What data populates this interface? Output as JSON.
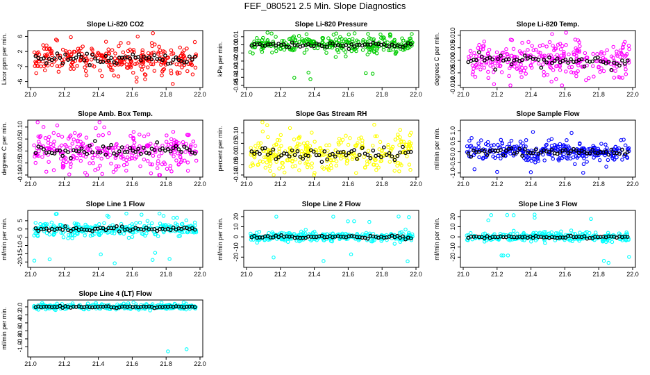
{
  "page_title": "FEF_080521  2.5 Min. Slope Diagnostics",
  "colors": {
    "mean": "#000000",
    "red": "#ff0000",
    "green": "#00cc00",
    "magenta": "#ff00ff",
    "yellow": "#ffff00",
    "blue": "#0000ff",
    "cyan": "#00ffff"
  },
  "chart_data": [
    {
      "type": "scatter",
      "title": "Slope Li-820 CO2",
      "ylabel": "Licor ppm per min.",
      "color": "red",
      "xlim": [
        21.0,
        22.0
      ],
      "ylim": [
        -7,
        7
      ],
      "xticks": [
        "21.0",
        "21.2",
        "21.4",
        "21.6",
        "21.8",
        "22.0"
      ],
      "yticks": [
        "-6",
        "-2",
        "2",
        "6"
      ],
      "spread": 1.8
    },
    {
      "type": "scatter",
      "title": "Slope Li-820 Pressure",
      "ylabel": "kPa per min.",
      "color": "green",
      "xlim": [
        21.0,
        22.0
      ],
      "ylim": [
        -0.05,
        0.015
      ],
      "xticks": [
        "21.0",
        "21.2",
        "21.4",
        "21.6",
        "21.8",
        "22.0"
      ],
      "yticks": [
        "-0.05",
        "-0.04",
        "-0.03",
        "-0.02",
        "-0.01",
        "0.00",
        "0.01"
      ],
      "spread": 0.005
    },
    {
      "type": "scatter",
      "title": "Slope Li-820 Temp.",
      "ylabel": "degrees C per min.",
      "color": "magenta",
      "xlim": [
        21.0,
        22.0
      ],
      "ylim": [
        -0.01,
        0.011
      ],
      "xticks": [
        "21.0",
        "21.2",
        "21.4",
        "21.6",
        "21.8",
        "22.0"
      ],
      "yticks": [
        "-0.010",
        "-0.005",
        "0.000",
        "0.005",
        "0.010"
      ],
      "spread": 0.0035
    },
    {
      "type": "scatter",
      "title": "Slope Amb. Box Temp.",
      "ylabel": "degrees C per min.",
      "color": "magenta",
      "xlim": [
        21.0,
        22.0
      ],
      "ylim": [
        -0.1,
        0.12
      ],
      "xticks": [
        "21.0",
        "21.2",
        "21.4",
        "21.6",
        "21.8",
        "22.0"
      ],
      "yticks": [
        "-0.10",
        "-0.05",
        "0.00",
        "0.05",
        "0.10"
      ],
      "spread": 0.04
    },
    {
      "type": "scatter",
      "title": "Slope Gas Stream RH",
      "ylabel": "percent per min.",
      "color": "yellow",
      "xlim": [
        21.0,
        22.0
      ],
      "ylim": [
        -0.1,
        0.15
      ],
      "xticks": [
        "21.0",
        "21.2",
        "21.4",
        "21.6",
        "21.8",
        "22.0"
      ],
      "yticks": [
        "-0.10",
        "-0.05",
        "0.00",
        "0.05",
        "0.10"
      ],
      "spread": 0.045
    },
    {
      "type": "scatter",
      "title": "Slope Sample Flow",
      "ylabel": "ml/min per min.",
      "color": "blue",
      "xlim": [
        21.0,
        22.0
      ],
      "ylim": [
        -1.1,
        1.4
      ],
      "xticks": [
        "21.0",
        "21.2",
        "21.4",
        "21.6",
        "21.8",
        "22.0"
      ],
      "yticks": [
        "-1.0",
        "-0.5",
        "0.0",
        "0.5",
        "1.0"
      ],
      "spread": 0.22
    },
    {
      "type": "scatter",
      "title": "Slope Line 1 Flow",
      "ylabel": "ml/min per min.",
      "color": "cyan",
      "xlim": [
        21.0,
        22.0
      ],
      "ylim": [
        -22,
        10
      ],
      "xticks": [
        "21.0",
        "21.2",
        "21.4",
        "21.6",
        "21.8",
        "22.0"
      ],
      "yticks": [
        "-20",
        "-15",
        "-10",
        "-5",
        "0",
        "5"
      ],
      "spread": 2.0
    },
    {
      "type": "scatter",
      "title": "Slope Line 2 Flow",
      "ylabel": "ml/min per min.",
      "color": "cyan",
      "xlim": [
        21.0,
        22.0
      ],
      "ylim": [
        -28,
        24
      ],
      "xticks": [
        "21.0",
        "21.2",
        "21.4",
        "21.6",
        "21.8",
        "22.0"
      ],
      "yticks": [
        "-20",
        "-10",
        "0",
        "10",
        "20"
      ],
      "spread": 2.2
    },
    {
      "type": "scatter",
      "title": "Slope Line 3 Flow",
      "ylabel": "ml/min per min.",
      "color": "cyan",
      "xlim": [
        21.0,
        22.0
      ],
      "ylim": [
        -28,
        24
      ],
      "xticks": [
        "21.0",
        "21.2",
        "21.4",
        "21.6",
        "21.8",
        "22.0"
      ],
      "yticks": [
        "-20",
        "-10",
        "0",
        "10",
        "20"
      ],
      "spread": 2.2
    },
    {
      "type": "scatter",
      "title": "Slope Line 4 (LT) Flow",
      "ylabel": "ml/min per min.",
      "color": "cyan",
      "xlim": [
        21.0,
        22.0
      ],
      "ylim": [
        -1.2,
        0.12
      ],
      "xticks": [
        "21.0",
        "21.2",
        "21.4",
        "21.6",
        "21.8",
        "22.0"
      ],
      "yticks": [
        "-1.0",
        "-0.8",
        "-0.6",
        "-0.4",
        "-0.2",
        "0.0"
      ],
      "spread": 0.03
    }
  ]
}
